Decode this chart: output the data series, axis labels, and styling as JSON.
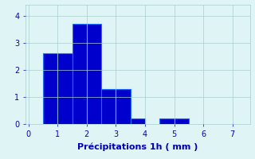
{
  "bar_lefts": [
    0.5,
    1.0,
    1.5,
    2.0,
    2.5,
    3.0,
    3.5,
    4.5,
    5.0
  ],
  "bar_heights": [
    2.6,
    2.6,
    3.7,
    3.7,
    1.3,
    1.3,
    0.2,
    0.2,
    0.2
  ],
  "bar_width": 0.5,
  "bar_color": "#0000cc",
  "bar_edge_color": "#1a6eff",
  "xlim": [
    -0.1,
    7.6
  ],
  "ylim": [
    0,
    4.4
  ],
  "xticks": [
    0,
    1,
    2,
    3,
    4,
    5,
    6,
    7
  ],
  "yticks": [
    0,
    1,
    2,
    3,
    4
  ],
  "xlabel": "Précipitations 1h ( mm )",
  "background_color": "#dff5f5",
  "grid_color": "#aacccc",
  "text_color": "#0000bb",
  "tick_color": "#0000bb",
  "tick_fontsize": 7,
  "label_fontsize": 8
}
